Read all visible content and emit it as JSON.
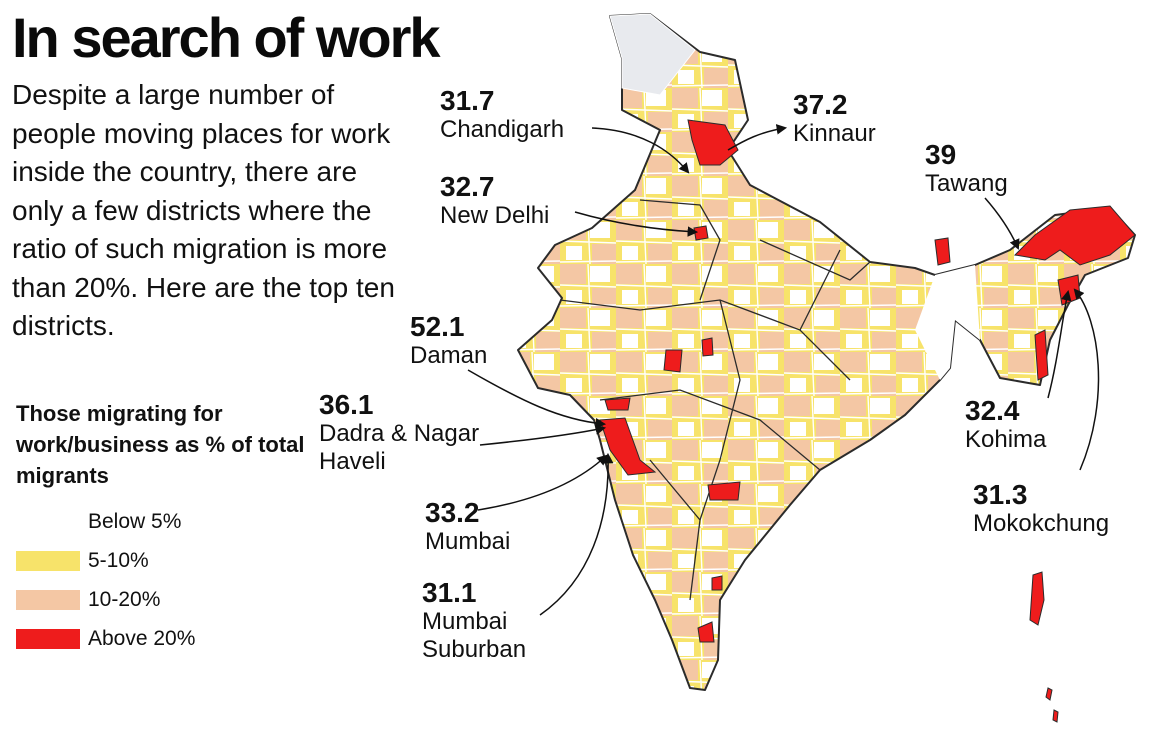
{
  "title": "In search of work",
  "description": "Despite a large number of people moving places for work inside the country, there are only a few districts where the ratio of such migration is more than 20%. Here are the top ten districts.",
  "legend": {
    "title": "Those migrating for work/business as % of total migrants",
    "items": [
      {
        "label": "Below 5%",
        "color": "#ffffff"
      },
      {
        "label": "5-10%",
        "color": "#f7e36a"
      },
      {
        "label": "10-20%",
        "color": "#f4c7a4"
      },
      {
        "label": "Above 20%",
        "color": "#ee1c1c"
      }
    ]
  },
  "districts": [
    {
      "value": "31.7",
      "name": "Chandigarh"
    },
    {
      "value": "37.2",
      "name": "Kinnaur"
    },
    {
      "value": "39",
      "name": "Tawang"
    },
    {
      "value": "32.7",
      "name": "New Delhi"
    },
    {
      "value": "52.1",
      "name": "Daman"
    },
    {
      "value": "36.1",
      "name": "Dadra & Nagar Haveli"
    },
    {
      "value": "32.4",
      "name": "Kohima"
    },
    {
      "value": "31.3",
      "name": "Mokokchung"
    },
    {
      "value": "33.2",
      "name": "Mumbai"
    },
    {
      "value": "31.1",
      "name": "Mumbai Suburban"
    }
  ],
  "colors": {
    "below5": "#ffffff",
    "band5_10": "#f7e36a",
    "band10_20": "#f4c7a4",
    "above20": "#ee1c1c",
    "outline": "#2b2b2b",
    "district_lines": "#ffffff",
    "pok": "#e8eaee"
  }
}
